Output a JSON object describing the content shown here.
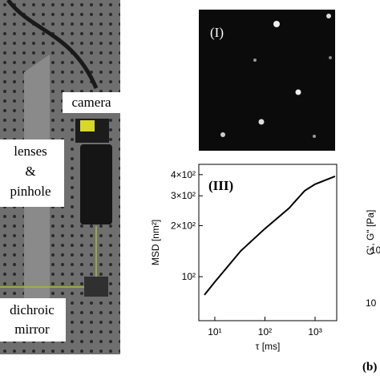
{
  "photo": {
    "labels": [
      "camera",
      "lenses",
      "&",
      "pinhole",
      "dichroic",
      "mirror"
    ]
  },
  "image_panel": {
    "label": "(I)"
  },
  "partial_panel": {
    "axis_label": "G', G\" [Pa]",
    "tick_labels": [
      "10",
      "10"
    ]
  },
  "figure_label": "(b)",
  "chart_data": {
    "type": "line",
    "panel_label": "(III)",
    "xlabel": "τ [ms]",
    "ylabel": "MSD [nm²]",
    "xscale": "log",
    "yscale": "log",
    "xlim": [
      4.8,
      2700
    ],
    "ylim": [
      55,
      460
    ],
    "xticks": [
      {
        "value": 10,
        "label": "10¹"
      },
      {
        "value": 100,
        "label": "10²"
      },
      {
        "value": 1000,
        "label": "10³"
      }
    ],
    "yticks": [
      {
        "value": 100,
        "label": "10²"
      },
      {
        "value": 200,
        "label": "2×10²"
      },
      {
        "value": 300,
        "label": "3×10²"
      },
      {
        "value": 400,
        "label": "4×10²"
      }
    ],
    "series": [
      {
        "color": "#000000",
        "x": [
          6.2,
          10,
          33,
          100,
          300,
          620,
          1000,
          2500
        ],
        "values": [
          78,
          93,
          142,
          192,
          253,
          321,
          351,
          391
        ]
      }
    ]
  }
}
